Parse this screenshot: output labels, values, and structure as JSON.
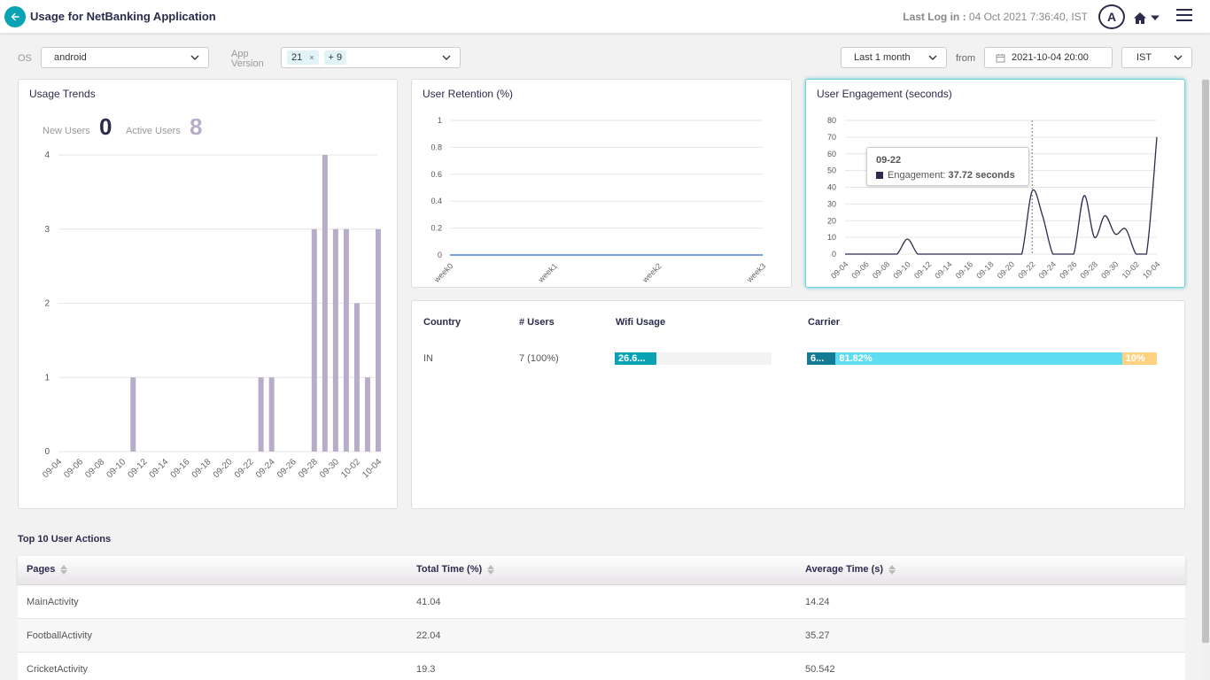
{
  "header": {
    "title": "Usage for NetBanking Application",
    "last_login_label": "Last Log in :",
    "last_login_value": "04 Oct 2021 7:36:40, IST",
    "avatar_initial": "A"
  },
  "filters": {
    "os_label": "OS",
    "os_value": "android",
    "app_version_label_1": "App",
    "app_version_label_2": "Version",
    "app_version_chip": "21",
    "app_version_more": "+ 9",
    "period_value": "Last 1 month",
    "from_label": "from",
    "from_date": "2021-10-04 20:00",
    "timezone": "IST"
  },
  "usage_trends": {
    "title": "Usage Trends",
    "new_users_label": "New Users",
    "new_users_value": "0",
    "active_users_label": "Active Users",
    "active_users_value": "8"
  },
  "user_retention": {
    "title": "User Retention (%)"
  },
  "user_engagement": {
    "title": "User Engagement (seconds)",
    "tooltip_date": "09-22",
    "tooltip_label": "Engagement:",
    "tooltip_value": "37.72 seconds"
  },
  "country_table": {
    "headers": {
      "country": "Country",
      "users": "# Users",
      "wifi": "Wifi Usage",
      "carrier": "Carrier"
    },
    "row": {
      "country": "IN",
      "users": "7 (100%)",
      "wifi_label": "26.6...",
      "wifi_fraction": 0.266,
      "carrier_segments": [
        {
          "label": "6...",
          "fraction": 0.082,
          "color": "#137c94"
        },
        {
          "label": "81.82%",
          "fraction": 0.8182,
          "color": "#5fdcf0"
        },
        {
          "label": "10%",
          "fraction": 0.1,
          "color": "#fdd382"
        }
      ]
    }
  },
  "top_actions": {
    "title": "Top 10 User Actions",
    "columns": [
      "Pages",
      "Total Time (%)",
      "Average Time (s)"
    ],
    "rows": [
      {
        "page": "MainActivity",
        "total": "41.04",
        "avg": "14.24"
      },
      {
        "page": "FootballActivity",
        "total": "22.04",
        "avg": "35.27"
      },
      {
        "page": "CricketActivity",
        "total": "19.3",
        "avg": "50.542"
      }
    ]
  },
  "colors": {
    "accent": "#0aa3b4",
    "navy": "#2b2b4d",
    "bar": "#b8adc9",
    "retention": "#7b9fe0"
  },
  "chart_data": [
    {
      "type": "bar",
      "categories": [
        "09-04",
        "09-05",
        "09-06",
        "09-07",
        "09-08",
        "09-09",
        "09-10",
        "09-11",
        "09-12",
        "09-13",
        "09-14",
        "09-15",
        "09-16",
        "09-17",
        "09-18",
        "09-19",
        "09-20",
        "09-21",
        "09-22",
        "09-23",
        "09-24",
        "09-25",
        "09-26",
        "09-27",
        "09-28",
        "09-29",
        "09-30",
        "10-01",
        "10-02",
        "10-03",
        "10-04"
      ],
      "tick_labels": [
        "09-04",
        "09-06",
        "09-08",
        "09-10",
        "09-12",
        "09-14",
        "09-16",
        "09-18",
        "09-20",
        "09-22",
        "09-24",
        "09-26",
        "09-28",
        "09-30",
        "10-02",
        "10-04"
      ],
      "values": [
        0,
        0,
        0,
        0,
        0,
        0,
        0,
        1,
        0,
        0,
        0,
        0,
        0,
        0,
        0,
        0,
        0,
        0,
        0,
        1,
        1,
        0,
        0,
        0,
        3,
        4,
        3,
        3,
        2,
        1,
        3
      ],
      "yticks": [
        0,
        1,
        2,
        3,
        4
      ],
      "ylim": [
        0,
        4
      ]
    },
    {
      "type": "line",
      "categories": [
        "week0",
        "week1",
        "week2",
        "week3"
      ],
      "values": [
        0,
        0,
        0,
        0
      ],
      "yticks": [
        "0",
        "0.2",
        "0.4",
        "0.6",
        "0.8",
        "1"
      ],
      "ylim": [
        0,
        1
      ]
    },
    {
      "type": "line",
      "categories": [
        "09-04",
        "09-05",
        "09-06",
        "09-07",
        "09-08",
        "09-09",
        "09-10",
        "09-11",
        "09-12",
        "09-13",
        "09-14",
        "09-15",
        "09-16",
        "09-17",
        "09-18",
        "09-19",
        "09-20",
        "09-21",
        "09-22",
        "09-23",
        "09-24",
        "09-25",
        "09-26",
        "09-27",
        "09-28",
        "09-29",
        "09-30",
        "10-01",
        "10-02",
        "10-03",
        "10-04"
      ],
      "tick_labels": [
        "09-04",
        "09-06",
        "09-08",
        "09-10",
        "09-12",
        "09-14",
        "09-16",
        "09-18",
        "09-20",
        "09-22",
        "09-24",
        "09-26",
        "09-28",
        "09-30",
        "10-02",
        "10-04"
      ],
      "values": [
        0,
        0,
        0,
        0,
        0,
        0,
        9,
        0,
        0,
        0,
        0,
        0,
        0,
        0,
        0,
        0,
        0,
        0,
        37.72,
        23,
        0,
        0,
        0,
        35,
        10,
        23,
        12,
        15,
        0,
        0,
        70
      ],
      "yticks": [
        0,
        10,
        20,
        30,
        40,
        50,
        60,
        70,
        80
      ],
      "ylim": [
        0,
        80
      ]
    }
  ]
}
